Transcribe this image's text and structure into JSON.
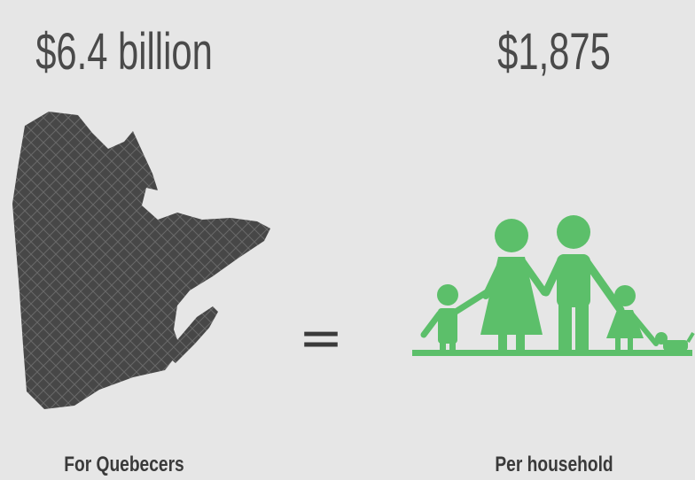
{
  "left": {
    "amount": "$6.4 billion",
    "caption": "For Quebecers"
  },
  "operator": "=",
  "right": {
    "amount": "$1,875",
    "caption": "Per household"
  }
}
